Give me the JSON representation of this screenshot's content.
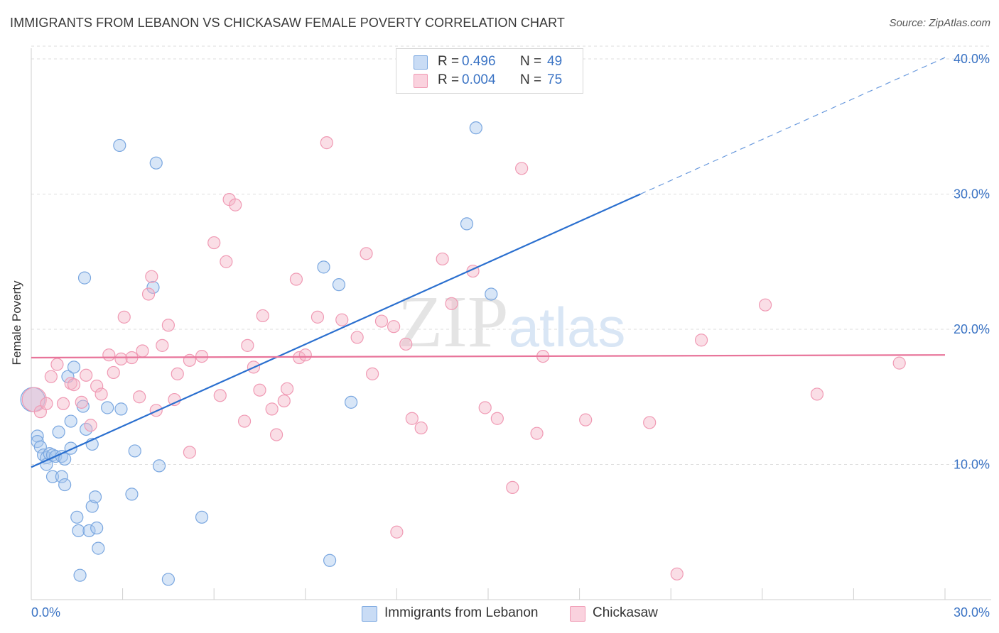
{
  "chart_data": {
    "type": "scatter",
    "title": "IMMIGRANTS FROM LEBANON VS CHICKASAW FEMALE POVERTY CORRELATION CHART",
    "source": "Source: ZipAtlas.com",
    "ylabel": "Female Poverty",
    "xlabel": "",
    "xlim": [
      0,
      30
    ],
    "ylim": [
      0,
      40
    ],
    "x_tick_labels": [
      "0.0%",
      "30.0%"
    ],
    "y_ticks": [
      10,
      20,
      30,
      40
    ],
    "y_tick_labels": [
      "10.0%",
      "20.0%",
      "30.0%",
      "40.0%"
    ],
    "watermark": "ZIPatlas",
    "legend": {
      "r_label": "R =",
      "n_label": "N =",
      "entries": [
        {
          "name": "Immigrants from Lebanon",
          "r": "0.496",
          "n": "49",
          "color": "#a9c8ee"
        },
        {
          "name": "Chickasaw",
          "r": "0.004",
          "n": "75",
          "color": "#f4b6c8"
        }
      ]
    },
    "series": [
      {
        "name": "Immigrants from Lebanon",
        "color": "#7aa7e0",
        "trend": {
          "x": [
            0,
            20,
            30
          ],
          "y": [
            9.8,
            30.0,
            40.1
          ],
          "line_color": "#2a6fcf",
          "dashed_from": 20
        },
        "points": [
          [
            0.05,
            14.8
          ],
          [
            0.2,
            12.1
          ],
          [
            0.2,
            11.7
          ],
          [
            0.3,
            11.3
          ],
          [
            0.4,
            10.7
          ],
          [
            0.5,
            10.5
          ],
          [
            0.5,
            10.0
          ],
          [
            0.6,
            10.8
          ],
          [
            0.7,
            10.7
          ],
          [
            0.7,
            9.1
          ],
          [
            0.8,
            10.6
          ],
          [
            0.9,
            12.4
          ],
          [
            1.0,
            9.1
          ],
          [
            1.0,
            10.6
          ],
          [
            1.1,
            10.4
          ],
          [
            1.1,
            8.5
          ],
          [
            1.2,
            16.5
          ],
          [
            1.3,
            13.2
          ],
          [
            1.3,
            11.2
          ],
          [
            1.4,
            17.2
          ],
          [
            1.5,
            6.1
          ],
          [
            1.55,
            5.1
          ],
          [
            1.6,
            1.8
          ],
          [
            1.7,
            14.3
          ],
          [
            1.75,
            23.8
          ],
          [
            1.8,
            12.6
          ],
          [
            1.9,
            5.1
          ],
          [
            2.0,
            11.5
          ],
          [
            2.0,
            6.9
          ],
          [
            2.1,
            7.6
          ],
          [
            2.15,
            5.3
          ],
          [
            2.2,
            3.8
          ],
          [
            2.5,
            14.2
          ],
          [
            2.9,
            33.6
          ],
          [
            2.95,
            14.1
          ],
          [
            3.3,
            7.8
          ],
          [
            3.4,
            11.0
          ],
          [
            4.0,
            23.1
          ],
          [
            4.1,
            32.3
          ],
          [
            4.2,
            9.9
          ],
          [
            4.5,
            1.5
          ],
          [
            5.6,
            6.1
          ],
          [
            9.6,
            24.6
          ],
          [
            9.8,
            2.9
          ],
          [
            10.1,
            23.3
          ],
          [
            10.5,
            14.6
          ],
          [
            14.3,
            27.8
          ],
          [
            14.6,
            34.9
          ],
          [
            15.1,
            22.6
          ]
        ]
      },
      {
        "name": "Chickasaw",
        "color": "#f09ab4",
        "trend": {
          "x": [
            0,
            30
          ],
          "y": [
            17.9,
            18.1
          ],
          "line_color": "#e8749a"
        },
        "points": [
          [
            0.1,
            14.8
          ],
          [
            0.3,
            13.9
          ],
          [
            0.5,
            14.5
          ],
          [
            0.65,
            16.5
          ],
          [
            0.85,
            17.4
          ],
          [
            1.05,
            14.5
          ],
          [
            1.3,
            16.0
          ],
          [
            1.4,
            15.9
          ],
          [
            1.65,
            14.6
          ],
          [
            1.8,
            16.6
          ],
          [
            1.95,
            12.9
          ],
          [
            2.15,
            15.8
          ],
          [
            2.3,
            15.2
          ],
          [
            2.55,
            18.1
          ],
          [
            2.7,
            16.8
          ],
          [
            2.95,
            17.8
          ],
          [
            3.05,
            20.9
          ],
          [
            3.3,
            17.9
          ],
          [
            3.55,
            15.0
          ],
          [
            3.65,
            18.4
          ],
          [
            3.85,
            22.6
          ],
          [
            3.95,
            23.9
          ],
          [
            4.1,
            14.0
          ],
          [
            4.3,
            18.8
          ],
          [
            4.5,
            20.3
          ],
          [
            4.7,
            14.8
          ],
          [
            4.8,
            16.7
          ],
          [
            5.2,
            10.9
          ],
          [
            5.2,
            17.7
          ],
          [
            5.6,
            18.0
          ],
          [
            6.0,
            26.4
          ],
          [
            6.2,
            15.1
          ],
          [
            6.4,
            25.0
          ],
          [
            6.5,
            29.6
          ],
          [
            6.7,
            29.2
          ],
          [
            7.0,
            13.2
          ],
          [
            7.1,
            18.8
          ],
          [
            7.3,
            17.2
          ],
          [
            7.5,
            15.5
          ],
          [
            7.6,
            21.0
          ],
          [
            7.9,
            14.1
          ],
          [
            8.05,
            12.2
          ],
          [
            8.3,
            14.7
          ],
          [
            8.4,
            15.6
          ],
          [
            8.7,
            23.7
          ],
          [
            8.8,
            17.9
          ],
          [
            9.0,
            18.1
          ],
          [
            9.4,
            20.9
          ],
          [
            9.7,
            33.8
          ],
          [
            10.2,
            20.7
          ],
          [
            10.7,
            19.4
          ],
          [
            11.0,
            25.6
          ],
          [
            11.2,
            16.7
          ],
          [
            11.5,
            20.6
          ],
          [
            11.9,
            20.2
          ],
          [
            12.0,
            5.0
          ],
          [
            12.3,
            18.9
          ],
          [
            12.5,
            13.4
          ],
          [
            12.8,
            12.7
          ],
          [
            13.5,
            25.2
          ],
          [
            13.8,
            21.9
          ],
          [
            14.5,
            24.3
          ],
          [
            14.9,
            14.2
          ],
          [
            15.3,
            13.4
          ],
          [
            15.8,
            8.3
          ],
          [
            16.1,
            31.9
          ],
          [
            16.6,
            12.3
          ],
          [
            16.8,
            18.0
          ],
          [
            18.2,
            13.3
          ],
          [
            20.3,
            13.1
          ],
          [
            21.2,
            1.9
          ],
          [
            22.0,
            19.2
          ],
          [
            24.1,
            21.8
          ],
          [
            25.8,
            15.2
          ],
          [
            28.5,
            17.5
          ]
        ]
      }
    ]
  }
}
